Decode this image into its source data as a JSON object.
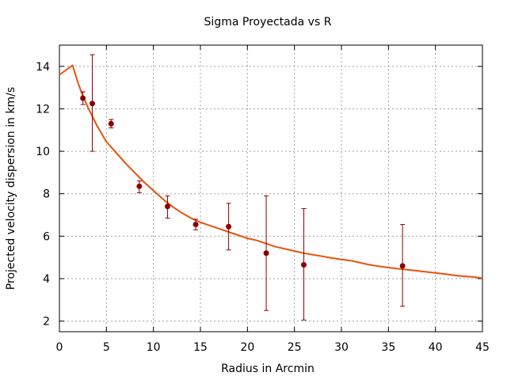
{
  "chart_data": {
    "type": "scatter",
    "title": "Sigma Proyectada vs R",
    "xlabel": "Radius in Arcmin",
    "ylabel": "Projected velocity dispersion in km/s",
    "xlim": [
      0,
      45
    ],
    "ylim": [
      1.5,
      15
    ],
    "grid": true,
    "x_ticks": [
      "0",
      "5",
      "10",
      "15",
      "20",
      "25",
      "30",
      "35",
      "40",
      "45"
    ],
    "y_ticks": [
      "2",
      "4",
      "6",
      "8",
      "10",
      "12",
      "14"
    ],
    "series": [
      {
        "kind": "errorbar",
        "color": "#8b0000",
        "points": [
          {
            "x": 2.5,
            "y": 12.5,
            "ylo": 12.2,
            "yhi": 12.8
          },
          {
            "x": 3.5,
            "y": 12.25,
            "ylo": 10.0,
            "yhi": 14.55
          },
          {
            "x": 5.5,
            "y": 11.3,
            "ylo": 11.1,
            "yhi": 11.5
          },
          {
            "x": 8.5,
            "y": 8.35,
            "ylo": 8.05,
            "yhi": 8.6
          },
          {
            "x": 11.5,
            "y": 7.4,
            "ylo": 6.85,
            "yhi": 7.9
          },
          {
            "x": 14.5,
            "y": 6.55,
            "ylo": 6.3,
            "yhi": 6.8
          },
          {
            "x": 18.0,
            "y": 6.45,
            "ylo": 5.35,
            "yhi": 7.55
          },
          {
            "x": 22.0,
            "y": 5.2,
            "ylo": 2.5,
            "yhi": 7.9
          },
          {
            "x": 26.0,
            "y": 4.65,
            "ylo": 2.05,
            "yhi": 7.3
          },
          {
            "x": 36.5,
            "y": 4.6,
            "ylo": 2.7,
            "yhi": 6.55
          }
        ]
      },
      {
        "kind": "line",
        "color": "#e8520a",
        "points": [
          [
            0,
            13.6
          ],
          [
            1.4,
            14.05
          ],
          [
            2.0,
            13.2
          ],
          [
            2.5,
            12.6
          ],
          [
            3.0,
            12.1
          ],
          [
            3.5,
            11.65
          ],
          [
            4.0,
            11.2
          ],
          [
            5.0,
            10.45
          ],
          [
            6.0,
            9.95
          ],
          [
            7.0,
            9.45
          ],
          [
            8.0,
            9.0
          ],
          [
            9.0,
            8.55
          ],
          [
            10.0,
            8.15
          ],
          [
            11.0,
            7.75
          ],
          [
            12.0,
            7.4
          ],
          [
            13.0,
            7.1
          ],
          [
            14.0,
            6.85
          ],
          [
            15.0,
            6.65
          ],
          [
            16.0,
            6.5
          ],
          [
            17.0,
            6.35
          ],
          [
            18.0,
            6.2
          ],
          [
            19.0,
            6.05
          ],
          [
            20.0,
            5.9
          ],
          [
            21.0,
            5.8
          ],
          [
            22.0,
            5.65
          ],
          [
            23.0,
            5.5
          ],
          [
            24.0,
            5.4
          ],
          [
            25.0,
            5.3
          ],
          [
            26.0,
            5.2
          ],
          [
            27.0,
            5.12
          ],
          [
            28.0,
            5.05
          ],
          [
            29.0,
            4.97
          ],
          [
            30.0,
            4.9
          ],
          [
            31.0,
            4.85
          ],
          [
            32.0,
            4.75
          ],
          [
            33.0,
            4.65
          ],
          [
            34.0,
            4.58
          ],
          [
            35.0,
            4.52
          ],
          [
            36.0,
            4.47
          ],
          [
            37.0,
            4.42
          ],
          [
            38.0,
            4.37
          ],
          [
            39.0,
            4.32
          ],
          [
            40.0,
            4.27
          ],
          [
            41.0,
            4.22
          ],
          [
            42.0,
            4.16
          ],
          [
            43.0,
            4.11
          ],
          [
            44.0,
            4.08
          ],
          [
            45.0,
            4.02
          ]
        ]
      }
    ]
  }
}
